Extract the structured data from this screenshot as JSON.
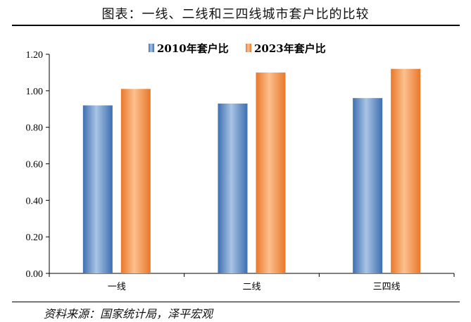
{
  "title": "图表：一线、二线和三四线城市套户比的比较",
  "source": "资料来源：国家统计局，泽平宏观",
  "colors": {
    "series_2010": "#4F81BD",
    "series_2023": "#F79646"
  },
  "chart_data": {
    "type": "bar",
    "categories": [
      "一线",
      "二线",
      "三四线"
    ],
    "series": [
      {
        "name": "2010年套户比",
        "values": [
          0.92,
          0.93,
          0.96
        ]
      },
      {
        "name": "2023年套户比",
        "values": [
          1.01,
          1.1,
          1.12
        ]
      }
    ],
    "yticks": [
      "0.00",
      "0.20",
      "0.40",
      "0.60",
      "0.80",
      "1.00",
      "1.20"
    ],
    "ylim": [
      0,
      1.2
    ],
    "legend": "top-center",
    "grid": false
  }
}
